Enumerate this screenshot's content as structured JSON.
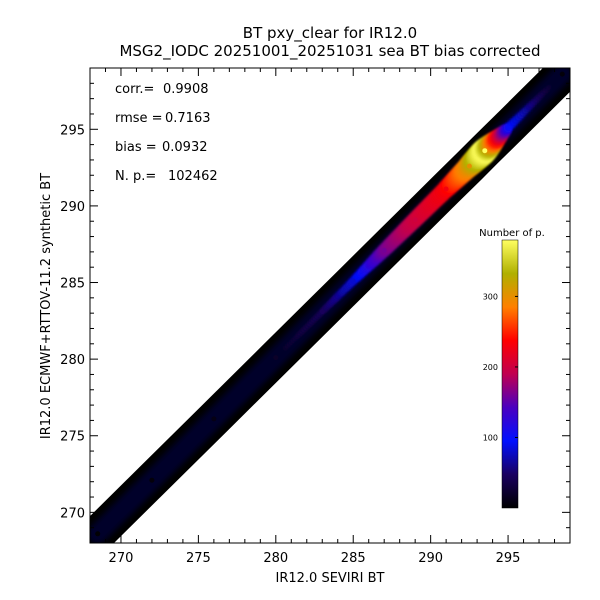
{
  "chart_data": {
    "type": "scatter",
    "title": "BT pxy_clear for IR12.0",
    "subtitle": "MSG2_IODC 20251001_20251031 sea BT bias corrected",
    "xlabel": "IR12.0 SEVIRI BT",
    "ylabel": "IR12.0 ECMWF+RTTOV-11.2 synthetic BT",
    "xlim": [
      268,
      299
    ],
    "ylim": [
      268,
      299
    ],
    "xticks": [
      270,
      275,
      280,
      285,
      290,
      295
    ],
    "yticks": [
      270,
      275,
      280,
      285,
      290,
      295
    ],
    "grid": false,
    "stats": [
      {
        "label": "corr.=",
        "value": "0.9908"
      },
      {
        "label": "rmse =",
        "value": "0.7163"
      },
      {
        "label": "bias =",
        "value": "0.0932"
      },
      {
        "label": "N. p.=",
        "value": "102462"
      }
    ],
    "colorbar": {
      "title": "Number of p.",
      "range": [
        0,
        380
      ],
      "ticks": [
        100,
        200,
        300
      ],
      "colors": [
        "#000000",
        "#1a0060",
        "#0010ff",
        "#4a00c0",
        "#c00050",
        "#ff0000",
        "#ff8000",
        "#b0b000",
        "#ffff60"
      ]
    },
    "density_ridge": [
      {
        "x": 268.5,
        "y": 268.6,
        "count": 2
      },
      {
        "x": 272,
        "y": 272.1,
        "count": 5
      },
      {
        "x": 276,
        "y": 276.1,
        "count": 10
      },
      {
        "x": 280,
        "y": 280.1,
        "count": 20
      },
      {
        "x": 283,
        "y": 283.1,
        "count": 45
      },
      {
        "x": 285,
        "y": 285.1,
        "count": 80
      },
      {
        "x": 287,
        "y": 287.1,
        "count": 160
      },
      {
        "x": 289,
        "y": 289.1,
        "count": 200
      },
      {
        "x": 291,
        "y": 291.1,
        "count": 230
      },
      {
        "x": 292.5,
        "y": 292.6,
        "count": 300
      },
      {
        "x": 293.5,
        "y": 293.6,
        "count": 380
      },
      {
        "x": 295,
        "y": 295.1,
        "count": 100
      },
      {
        "x": 298.5,
        "y": 298.6,
        "count": 5
      }
    ]
  }
}
